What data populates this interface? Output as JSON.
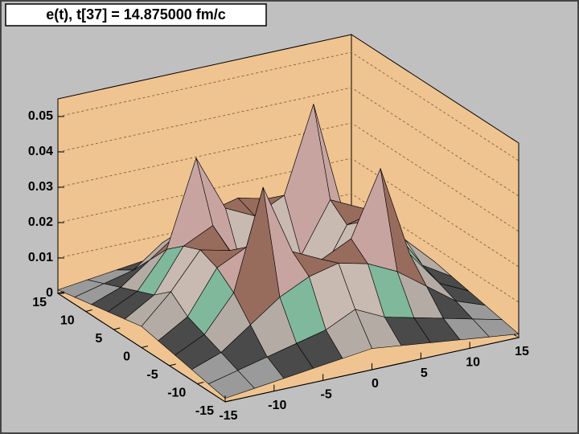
{
  "chart_data": {
    "type": "surface",
    "title": "e(t), t[37] = 14.875000 fm/c",
    "x": [
      -15,
      -12,
      -9,
      -6,
      -3,
      0,
      3,
      6,
      9,
      12,
      15
    ],
    "y": [
      -15,
      -12,
      -9,
      -6,
      -3,
      0,
      3,
      6,
      9,
      12,
      15
    ],
    "z": [
      [
        0.001,
        0.002,
        0.003,
        0.004,
        0.005,
        0.006,
        0.005,
        0.004,
        0.003,
        0.002,
        0.001
      ],
      [
        0.002,
        0.004,
        0.006,
        0.008,
        0.01,
        0.014,
        0.01,
        0.008,
        0.006,
        0.004,
        0.002
      ],
      [
        0.003,
        0.006,
        0.012,
        0.018,
        0.022,
        0.024,
        0.022,
        0.018,
        0.012,
        0.006,
        0.003
      ],
      [
        0.004,
        0.008,
        0.018,
        0.046,
        0.026,
        0.022,
        0.026,
        0.044,
        0.018,
        0.008,
        0.004
      ],
      [
        0.005,
        0.01,
        0.022,
        0.026,
        0.012,
        0.008,
        0.012,
        0.026,
        0.022,
        0.01,
        0.005
      ],
      [
        0.006,
        0.014,
        0.024,
        0.022,
        0.008,
        0.005,
        0.008,
        0.022,
        0.024,
        0.014,
        0.006
      ],
      [
        0.005,
        0.01,
        0.022,
        0.026,
        0.012,
        0.008,
        0.012,
        0.026,
        0.022,
        0.01,
        0.005
      ],
      [
        0.004,
        0.008,
        0.018,
        0.042,
        0.026,
        0.022,
        0.026,
        0.05,
        0.018,
        0.008,
        0.004
      ],
      [
        0.003,
        0.006,
        0.012,
        0.018,
        0.022,
        0.024,
        0.022,
        0.018,
        0.012,
        0.006,
        0.003
      ],
      [
        0.002,
        0.004,
        0.006,
        0.012,
        0.01,
        0.014,
        0.01,
        0.008,
        0.006,
        0.004,
        0.002
      ],
      [
        0.001,
        0.002,
        0.003,
        0.004,
        0.005,
        0.006,
        0.005,
        0.004,
        0.003,
        0.002,
        0.001
      ]
    ],
    "xlim": [
      -15,
      15
    ],
    "ylim": [
      -15,
      15
    ],
    "zlim": [
      0,
      0.055
    ],
    "xticks": [
      -15,
      -10,
      -5,
      0,
      5,
      10,
      15
    ],
    "yticks": [
      -15,
      -10,
      -5,
      0,
      5,
      10,
      15
    ],
    "zticks": [
      0,
      0.01,
      0.02,
      0.03,
      0.04,
      0.05
    ],
    "grid": true,
    "wall_color": "#efc490",
    "palette": [
      "#9a9a9a",
      "#4a4a4a",
      "#b4aca4",
      "#80b89c",
      "#c8bab0",
      "#986c5c",
      "#c8a4a0",
      "#8494b4",
      "#c4b488",
      "#a8cca4",
      "#d0a0c8",
      "#e01860"
    ]
  }
}
